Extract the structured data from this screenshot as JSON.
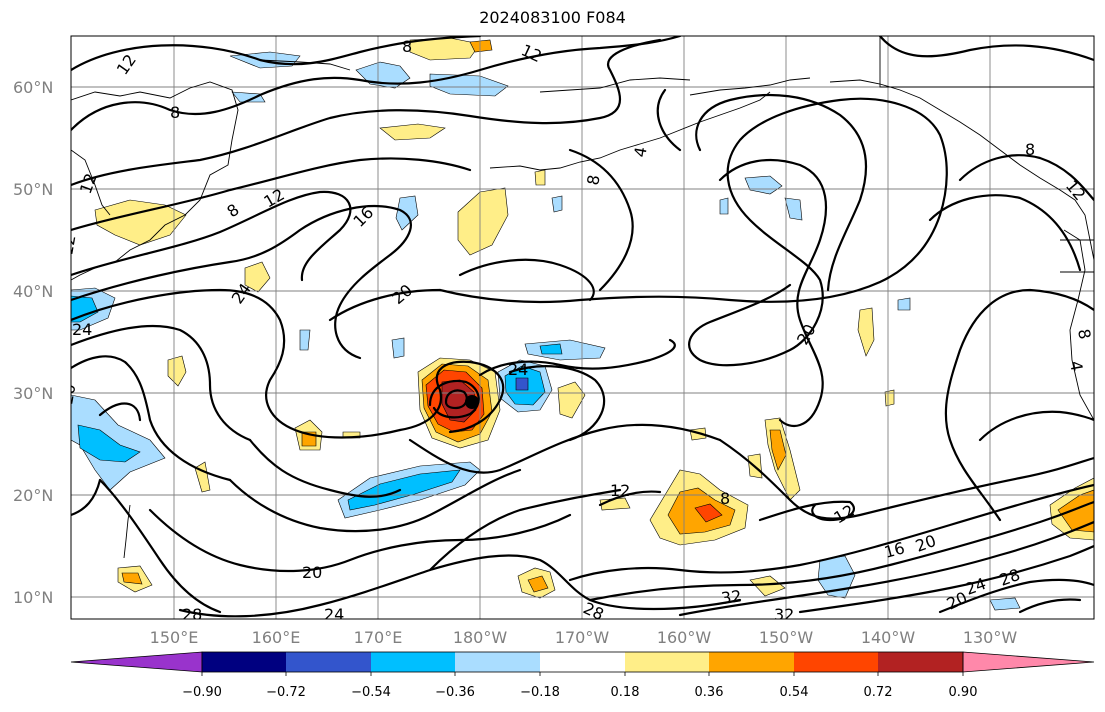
{
  "title": "2024083100 F084",
  "lat_labels": [
    "60°N",
    "50°N",
    "40°N",
    "30°N",
    "20°N",
    "10°N"
  ],
  "lon_labels": [
    "150°E",
    "160°E",
    "170°E",
    "180°W",
    "170°W",
    "160°W",
    "150°W",
    "140°W",
    "130°W"
  ],
  "colorbar": {
    "tick_labels": [
      "−0.90",
      "−0.72",
      "−0.54",
      "−0.36",
      "−0.18",
      "0.18",
      "0.36",
      "0.54",
      "0.72",
      "0.90"
    ],
    "colors": [
      "#9933cc",
      "#000080",
      "#3355cc",
      "#00bfff",
      "#aaddff",
      "#ffffff",
      "#ffee88",
      "#ffa500",
      "#ff4500",
      "#b22222",
      "#ff88aa"
    ]
  },
  "contour_labels": [
    "12",
    "8",
    "12",
    "8",
    "12",
    "8",
    "16",
    "12",
    "20",
    "24",
    "24",
    "20",
    "24",
    "20",
    "28",
    "24",
    "8",
    "4",
    "8",
    "12",
    "20",
    "12",
    "12",
    "16",
    "20",
    "32",
    "28",
    "32",
    "24",
    "28",
    "20",
    "8",
    "4",
    "12",
    "8"
  ],
  "colors": {
    "contour": "#000000",
    "grid": "#808080",
    "tick_text": "#808080"
  }
}
